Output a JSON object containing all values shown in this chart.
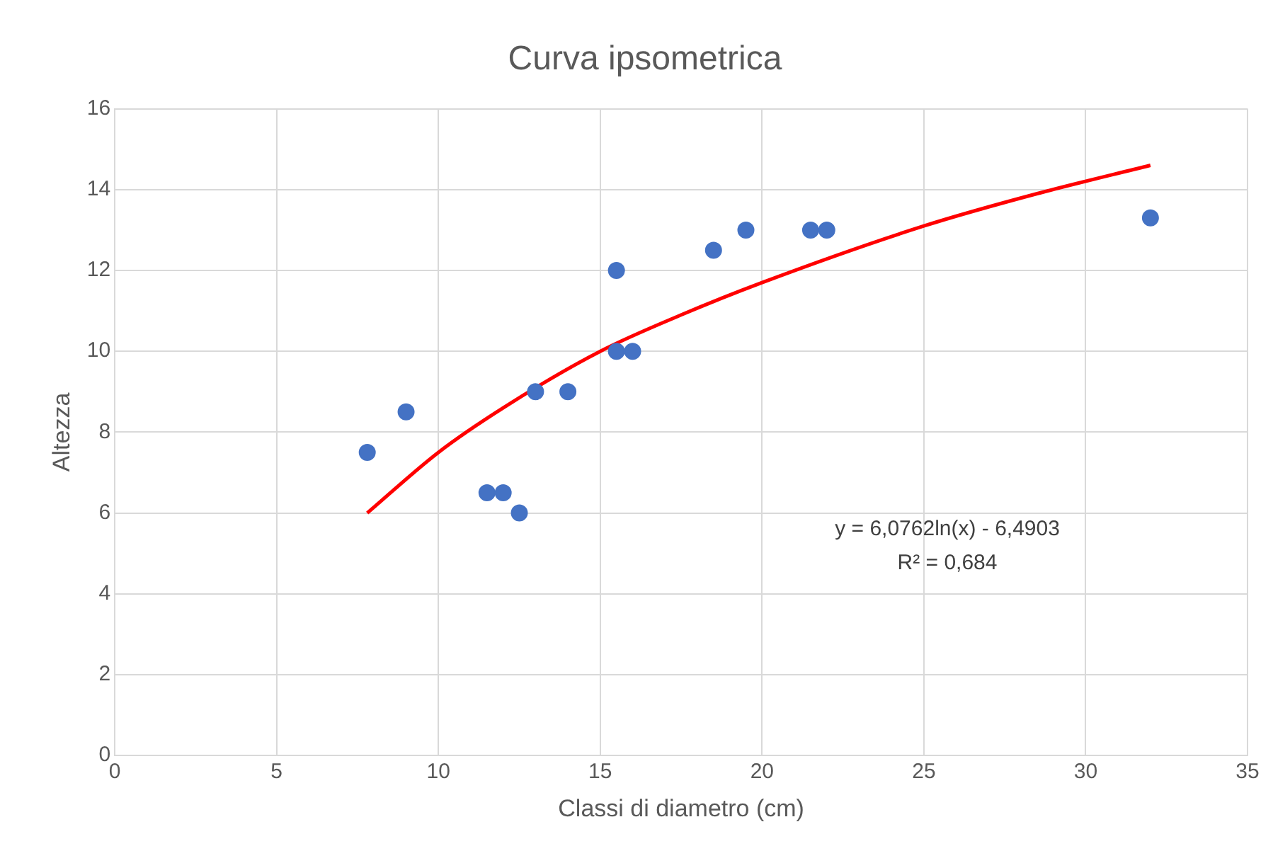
{
  "chart_data": {
    "type": "scatter",
    "title": "Curva ipsometrica",
    "xlabel": "Classi di diametro (cm)",
    "ylabel": "Altezza",
    "xlim": [
      0,
      35
    ],
    "xticks": [
      0,
      5,
      10,
      15,
      20,
      25,
      30,
      35
    ],
    "ylim": [
      0,
      16
    ],
    "yticks": [
      0,
      2,
      4,
      6,
      8,
      10,
      12,
      14,
      16
    ],
    "grid": true,
    "legend": false,
    "marker": "circle",
    "series": [
      {
        "color": "#4472c4",
        "x": [
          7.8,
          9,
          11.5,
          12,
          12.5,
          13,
          14,
          15.5,
          15.5,
          16,
          18.5,
          19.5,
          21.5,
          22,
          32
        ],
        "values": [
          7.5,
          8.5,
          6.5,
          6.5,
          6,
          9,
          9,
          12,
          10,
          10,
          12.5,
          13,
          13,
          13,
          13.3
        ]
      },
      {
        "type": "line",
        "color": "#ff0000",
        "marker": "none",
        "line_style": "solid",
        "x": [
          7.8,
          10,
          12,
          15,
          17.5,
          20,
          25,
          28.5,
          32
        ],
        "values": [
          6.0,
          7.5,
          8.6,
          10.0,
          10.9,
          11.7,
          13.1,
          13.9,
          14.6
        ]
      }
    ],
    "annotations": [
      "y = 6,0762ln(x) - 6,4903",
      "R² = 0,684"
    ]
  }
}
